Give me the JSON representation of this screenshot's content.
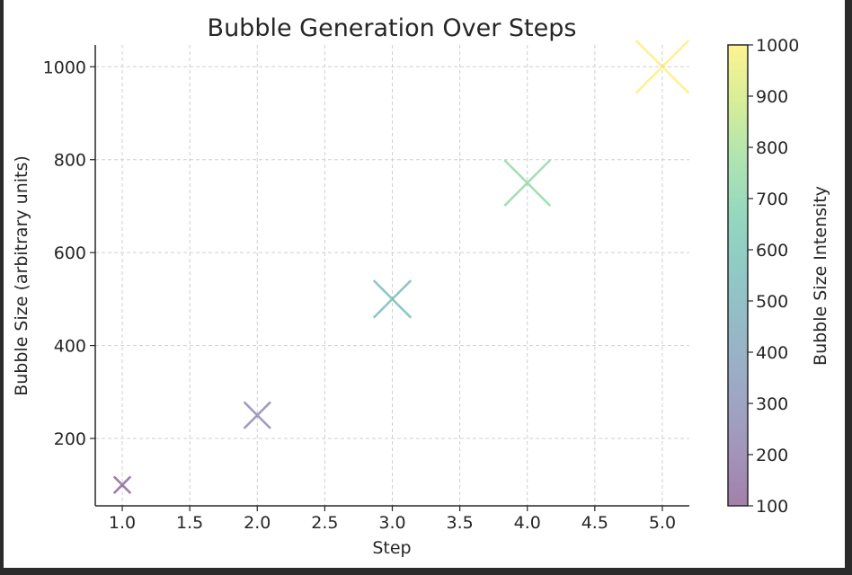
{
  "chart_data": {
    "type": "scatter",
    "title": "Bubble Generation Over Steps",
    "xlabel": "Step",
    "ylabel": "Bubble Size (arbitrary units)",
    "xlim": [
      0.8,
      5.2
    ],
    "ylim": [
      55,
      1047
    ],
    "x_ticks": [
      1.0,
      1.5,
      2.0,
      2.5,
      3.0,
      3.5,
      4.0,
      4.5,
      5.0
    ],
    "x_tick_labels": [
      "1.0",
      "1.5",
      "2.0",
      "2.5",
      "3.0",
      "3.5",
      "4.0",
      "4.5",
      "5.0"
    ],
    "y_ticks": [
      200,
      400,
      600,
      800,
      1000
    ],
    "y_tick_labels": [
      "200",
      "400",
      "600",
      "800",
      "1000"
    ],
    "grid": true,
    "marker": "x",
    "alpha": 0.5,
    "colormap": "viridis",
    "series": [
      {
        "x": [
          1,
          2,
          3,
          4,
          5
        ],
        "values": [
          100,
          250,
          500,
          750,
          1000
        ],
        "colors": [
          "#440154",
          "#443a83",
          "#21918c",
          "#47c16e",
          "#fde725"
        ]
      }
    ],
    "colorbar": {
      "label": "Bubble Size Intensity",
      "range": [
        100,
        1000
      ],
      "ticks": [
        100,
        200,
        300,
        400,
        500,
        600,
        700,
        800,
        900,
        1000
      ],
      "tick_labels": [
        "100",
        "200",
        "300",
        "400",
        "500",
        "600",
        "700",
        "800",
        "900",
        "1000"
      ],
      "stops": [
        "#440154",
        "#472c7a",
        "#3b518b",
        "#2c718e",
        "#21918c",
        "#28ae80",
        "#5ec962",
        "#addc30",
        "#fde725"
      ],
      "alpha": 0.5
    }
  }
}
